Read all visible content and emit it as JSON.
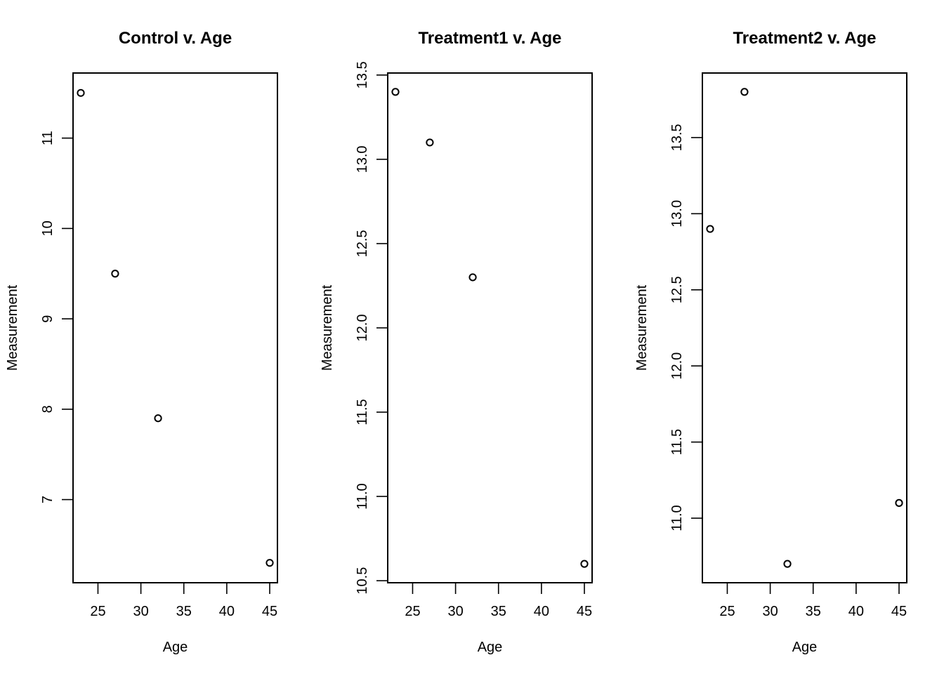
{
  "chart_data": [
    {
      "type": "scatter",
      "title": "Control v. Age",
      "xlabel": "Age",
      "ylabel": "Measurement",
      "xticks": [
        25,
        30,
        35,
        40,
        45
      ],
      "yticks": [
        "7",
        "8",
        "9",
        "10",
        "11"
      ],
      "xlim": [
        22.1,
        45.9
      ],
      "ylim": [
        6.08,
        11.72
      ],
      "points": [
        {
          "x": 23,
          "y": 11.5
        },
        {
          "x": 27,
          "y": 9.5
        },
        {
          "x": 32,
          "y": 7.9
        },
        {
          "x": 45,
          "y": 6.3
        }
      ]
    },
    {
      "type": "scatter",
      "title": "Treatment1 v. Age",
      "xlabel": "Age",
      "ylabel": "Measurement",
      "xticks": [
        25,
        30,
        35,
        40,
        45
      ],
      "yticks": [
        "10.5",
        "11.0",
        "11.5",
        "12.0",
        "12.5",
        "13.0",
        "13.5"
      ],
      "xlim": [
        22.1,
        45.9
      ],
      "ylim": [
        10.488,
        13.512
      ],
      "points": [
        {
          "x": 23,
          "y": 13.4
        },
        {
          "x": 27,
          "y": 13.1
        },
        {
          "x": 32,
          "y": 12.3
        },
        {
          "x": 45,
          "y": 10.6
        }
      ]
    },
    {
      "type": "scatter",
      "title": "Treatment2 v. Age",
      "xlabel": "Age",
      "ylabel": "Measurement",
      "xticks": [
        25,
        30,
        35,
        40,
        45
      ],
      "yticks": [
        "11.0",
        "11.5",
        "12.0",
        "12.5",
        "13.0",
        "13.5"
      ],
      "xlim": [
        22.1,
        45.9
      ],
      "ylim": [
        10.576,
        13.924
      ],
      "points": [
        {
          "x": 23,
          "y": 12.9
        },
        {
          "x": 27,
          "y": 13.8
        },
        {
          "x": 32,
          "y": 10.7
        },
        {
          "x": 45,
          "y": 11.1
        }
      ]
    }
  ]
}
